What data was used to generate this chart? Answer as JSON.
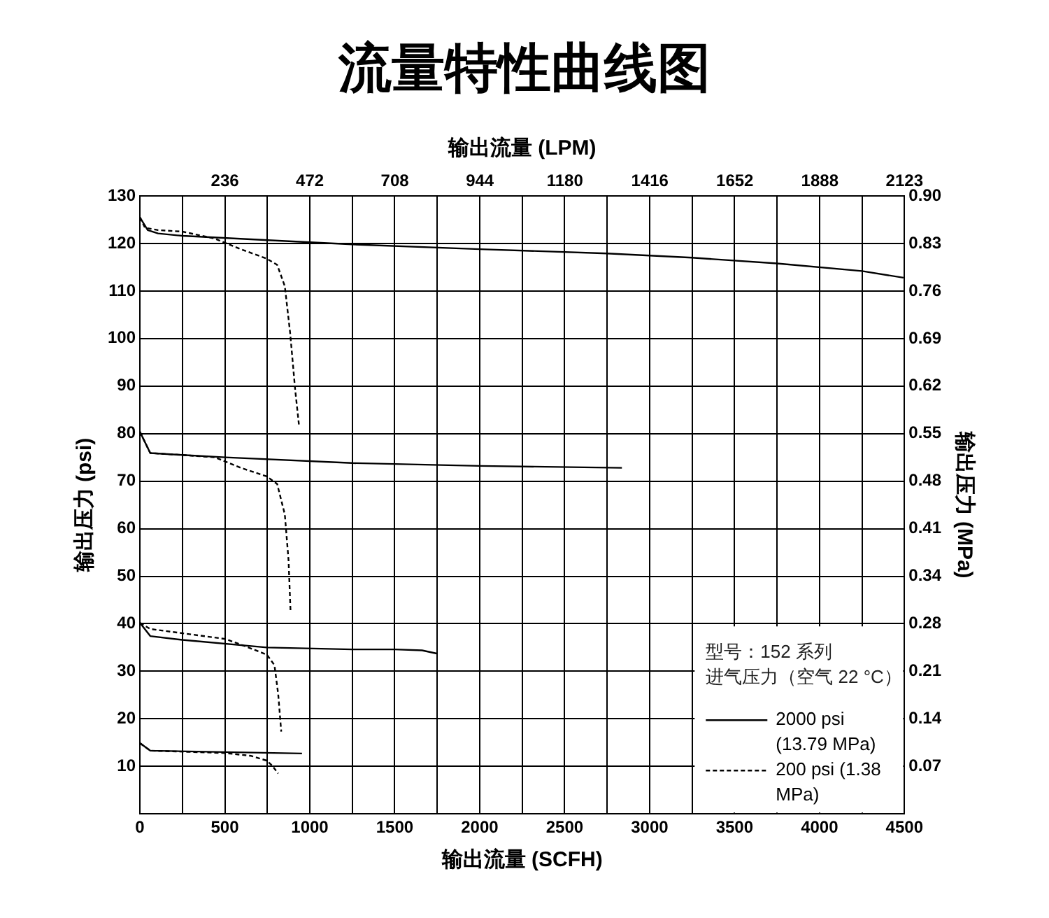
{
  "chart_data": {
    "type": "line",
    "title": "流量特性曲线图",
    "xlabel": "输出流量 (SCFH)",
    "x2label": "输出流量 (LPM)",
    "ylabel": "输出压力 (psi)",
    "y2label": "输出压力 (MPa)",
    "legend_title": "进气压力（空气 22 °C）",
    "annotations": [
      "型号：152 系列"
    ],
    "legend": "bottom right",
    "grid": true,
    "marker": "none",
    "xlim": [
      0,
      4500
    ],
    "xticks": [
      0,
      {
        "value": 250,
        "label": null
      },
      500,
      {
        "value": 750,
        "label": null
      },
      1000,
      {
        "value": 1250,
        "label": null
      },
      1500,
      {
        "value": 1750,
        "label": null
      },
      2000,
      {
        "value": 2250,
        "label": null
      },
      2500,
      {
        "value": 2750,
        "label": null
      },
      3000,
      {
        "value": 3250,
        "label": null
      },
      3500,
      {
        "value": 3750,
        "label": null
      },
      4000,
      {
        "value": 4250,
        "label": null
      },
      4500
    ],
    "x2lim": [
      0,
      2123
    ],
    "x2ticks": [
      236,
      472,
      708,
      944,
      1180,
      1416,
      1652,
      1888,
      2123
    ],
    "ylim": [
      0,
      130
    ],
    "yticks": [
      10,
      20,
      30,
      40,
      50,
      60,
      70,
      80,
      90,
      100,
      110,
      120,
      130
    ],
    "y2lim": [
      0,
      0.896
    ],
    "y2ticks": [
      {
        "value": 0.069,
        "label": "0.07"
      },
      {
        "value": 0.138,
        "label": "0.14"
      },
      {
        "value": 0.207,
        "label": "0.21"
      },
      {
        "value": 0.276,
        "label": "0.28"
      },
      {
        "value": 0.345,
        "label": "0.34"
      },
      {
        "value": 0.414,
        "label": "0.41"
      },
      {
        "value": 0.483,
        "label": "0.48"
      },
      {
        "value": 0.552,
        "label": "0.55"
      },
      {
        "value": 0.621,
        "label": "0.62"
      },
      {
        "value": 0.689,
        "label": "0.69"
      },
      {
        "value": 0.758,
        "label": "0.76"
      },
      {
        "value": 0.827,
        "label": "0.83"
      },
      {
        "value": 0.896,
        "label": "0.90"
      }
    ],
    "series": [
      {
        "name": "2000 psi (13.79 MPa)",
        "color": "#000000",
        "line_style": "solid",
        "x": [
          0,
          46,
          107,
          250,
          753,
          1250,
          2000,
          2750,
          3250,
          3750,
          4250,
          4494
        ],
        "values": [
          125.5,
          122.8,
          122.1,
          121.6,
          120.7,
          119.8,
          118.8,
          117.9,
          117,
          115.8,
          114.2,
          112.8
        ]
      },
      {
        "name": "200 psi (1.38 MPa)",
        "color": "#000000",
        "line_style": "dashed",
        "x": [
          0,
          30,
          107,
          250,
          442,
          594,
          747,
          808,
          853,
          884,
          914,
          936
        ],
        "values": [
          125.5,
          123.3,
          122.8,
          122.5,
          121,
          118.8,
          116.8,
          115.5,
          111,
          101.3,
          89.2,
          81.9
        ]
      },
      {
        "color": "#000000",
        "line_style": "solid",
        "x": [
          0,
          61,
          250,
          503,
          1249,
          2000,
          2837
        ],
        "values": [
          80.4,
          75.9,
          75.5,
          75,
          73.8,
          73.2,
          72.8
        ]
      },
      {
        "color": "#000000",
        "line_style": "dashed",
        "x": [
          0,
          61,
          250,
          442,
          594,
          747,
          808,
          853,
          875,
          887
        ],
        "values": [
          80.4,
          75.9,
          75.5,
          75,
          72.8,
          71,
          69.4,
          63,
          53.3,
          42.3
        ]
      },
      {
        "color": "#000000",
        "line_style": "solid",
        "x": [
          0,
          61,
          250,
          747,
          1249,
          1500,
          1661,
          1752
        ],
        "values": [
          40.2,
          37.4,
          36.6,
          35,
          34.6,
          34.6,
          34.4,
          33.7
        ]
      },
      {
        "color": "#000000",
        "line_style": "dashed",
        "x": [
          0,
          61,
          503,
          625,
          747,
          792,
          814,
          832
        ],
        "values": [
          40.2,
          38.9,
          36.8,
          35.2,
          33.5,
          31.3,
          25.2,
          17.3
        ]
      },
      {
        "color": "#000000",
        "line_style": "solid",
        "x": [
          0,
          61,
          503,
          954
        ],
        "values": [
          14.9,
          13.3,
          13,
          12.7
        ]
      },
      {
        "color": "#000000",
        "line_style": "dashed",
        "x": [
          0,
          61,
          503,
          655,
          747,
          777,
          814
        ],
        "values": [
          14.9,
          13.3,
          12.8,
          12.2,
          11.2,
          10.2,
          8.5
        ]
      }
    ]
  }
}
